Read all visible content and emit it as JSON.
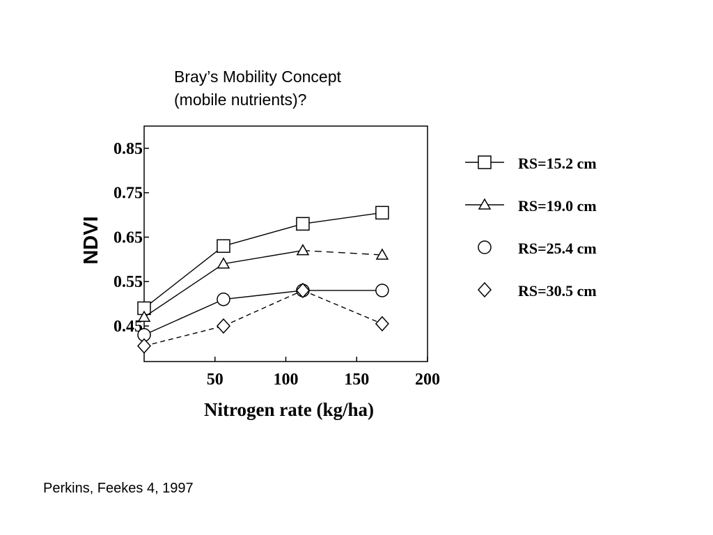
{
  "slide": {
    "title_line1": "Bray’s Mobility Concept",
    "title_line2": "(mobile nutrients)?",
    "citation": "Perkins, Feekes 4, 1997"
  },
  "chart_data": {
    "type": "line",
    "title": "",
    "xlabel": "Nitrogen rate (kg/ha)",
    "ylabel": "NDVI",
    "xlim": [
      0,
      200
    ],
    "ylim": [
      0.37,
      0.9
    ],
    "xticks": [
      50,
      100,
      150,
      200
    ],
    "xtick_labels": [
      "50",
      "100",
      "150",
      "200"
    ],
    "yticks": [
      0.45,
      0.55,
      0.65,
      0.75,
      0.85
    ],
    "ytick_labels": [
      "0.45",
      "0.55",
      "0.65",
      "0.75",
      "0.85"
    ],
    "grid": false,
    "legend_position": "right",
    "series": [
      {
        "name": "RS=15.2 cm",
        "marker": "square",
        "line": "solid",
        "x": [
          0,
          56,
          112,
          168
        ],
        "y": [
          0.49,
          0.63,
          0.68,
          0.705
        ]
      },
      {
        "name": "RS=19.0 cm",
        "marker": "triangle",
        "line": "solid-then-dashed",
        "x": [
          0,
          56,
          112,
          168
        ],
        "y": [
          0.47,
          0.59,
          0.62,
          0.61
        ]
      },
      {
        "name": "RS=25.4 cm",
        "marker": "circle",
        "line": "solid",
        "x": [
          0,
          56,
          112,
          168
        ],
        "y": [
          0.43,
          0.51,
          0.53,
          0.53
        ]
      },
      {
        "name": "RS=30.5 cm",
        "marker": "diamond",
        "line": "dashed",
        "x": [
          0,
          56,
          112,
          168
        ],
        "y": [
          0.405,
          0.45,
          0.53,
          0.455
        ]
      }
    ]
  }
}
